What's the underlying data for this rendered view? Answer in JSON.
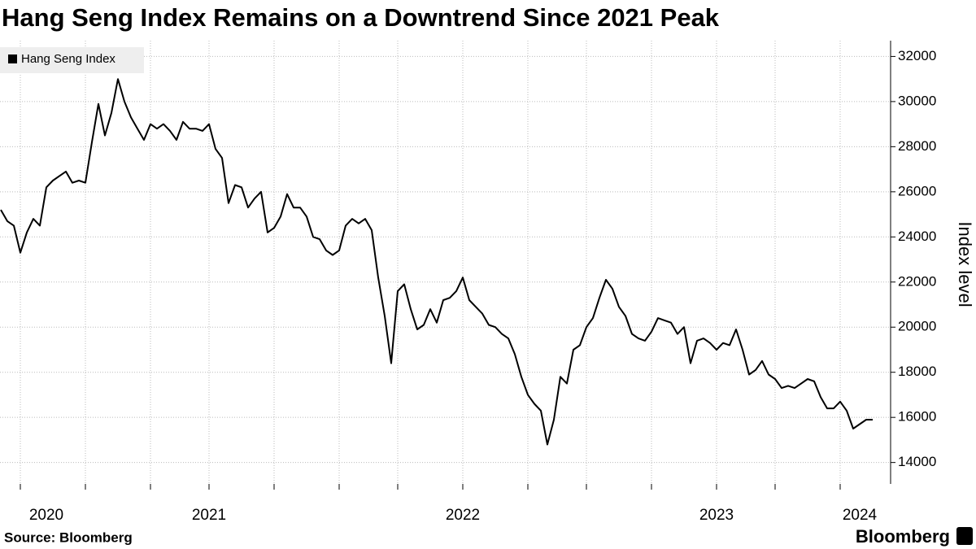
{
  "chart_data": {
    "type": "line",
    "title": "Hang Seng Index Remains on a Downtrend Since 2021 Peak",
    "y_axis_label": "Index level",
    "source": "Source: Bloomberg",
    "brand": "Bloomberg",
    "legend": "upper left",
    "grid": true,
    "ylim": [
      13050,
      32700
    ],
    "yticks": [
      14000,
      16000,
      18000,
      20000,
      22000,
      24000,
      26000,
      28000,
      30000,
      32000
    ],
    "categories": [
      null,
      null,
      null,
      null,
      null,
      null,
      null,
      "2020",
      null,
      null,
      null,
      null,
      null,
      null,
      null,
      null,
      null,
      null,
      null,
      null,
      null,
      null,
      null,
      null,
      null,
      null,
      null,
      null,
      null,
      null,
      null,
      null,
      "2021",
      null,
      null,
      null,
      null,
      null,
      null,
      null,
      null,
      null,
      null,
      null,
      null,
      null,
      null,
      null,
      null,
      null,
      null,
      null,
      null,
      null,
      null,
      null,
      null,
      null,
      null,
      null,
      null,
      null,
      null,
      null,
      null,
      null,
      null,
      null,
      null,
      null,
      null,
      "2022",
      null,
      null,
      null,
      null,
      null,
      null,
      null,
      null,
      null,
      null,
      null,
      null,
      null,
      null,
      null,
      null,
      null,
      null,
      null,
      null,
      null,
      null,
      null,
      null,
      null,
      null,
      null,
      null,
      null,
      null,
      null,
      null,
      null,
      null,
      null,
      null,
      null,
      null,
      "2023",
      null,
      null,
      null,
      null,
      null,
      null,
      null,
      null,
      null,
      null,
      null,
      null,
      null,
      null,
      null,
      null,
      null,
      null,
      null,
      null,
      null,
      "2024",
      null,
      null
    ],
    "series": [
      {
        "name": "Hang Seng Index",
        "color": "#000000",
        "values": [
          25200,
          24700,
          24500,
          23300,
          24200,
          24800,
          24500,
          26200,
          26500,
          26700,
          26900,
          26400,
          26500,
          26400,
          28200,
          29900,
          28500,
          29500,
          31000,
          30000,
          29300,
          28800,
          28300,
          29000,
          28800,
          29000,
          28700,
          28300,
          29100,
          28800,
          28800,
          28700,
          29000,
          27900,
          27500,
          25500,
          26300,
          26200,
          25300,
          25700,
          26000,
          24200,
          24400,
          24900,
          25900,
          25300,
          25300,
          24900,
          24000,
          23900,
          23400,
          23200,
          23400,
          24500,
          24800,
          24600,
          24800,
          24300,
          22200,
          20500,
          18400,
          21600,
          21900,
          20800,
          19900,
          20100,
          20800,
          20200,
          21200,
          21300,
          21600,
          22200,
          21200,
          20900,
          20600,
          20100,
          20000,
          19700,
          19500,
          18800,
          17800,
          17000,
          16600,
          16300,
          14800,
          15900,
          17800,
          17500,
          19000,
          19200,
          20000,
          20400,
          21300,
          22100,
          21700,
          20900,
          20500,
          19700,
          19500,
          19400,
          19800,
          20400,
          20300,
          20200,
          19700,
          20000,
          18400,
          19400,
          19500,
          19300,
          19000,
          19300,
          19200,
          19900,
          19000,
          17900,
          18100,
          18500,
          17900,
          17700,
          17300,
          17400,
          17300,
          17500,
          17700,
          17600,
          16900,
          16400,
          16400,
          16700,
          16300,
          15500,
          15700,
          15900,
          15900
        ]
      }
    ]
  }
}
